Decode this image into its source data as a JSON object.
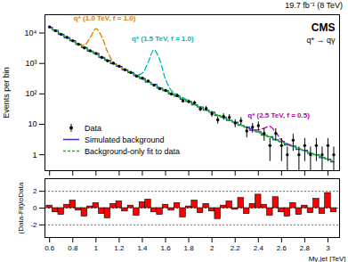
{
  "chart_data": [
    {
      "type": "line",
      "title": "CMS",
      "subtitle": "q* → qγ",
      "annotations": [
        "19.7 fb⁻¹ (8 TeV)"
      ],
      "y_label": "Events per bin",
      "log": "y",
      "legend": "bottom-left",
      "tick_labels": "y",
      "xlim": [
        0.56,
        3.1
      ],
      "xticks": [
        0.6,
        0.8,
        1,
        1.2,
        1.4,
        1.6,
        1.8,
        2,
        2.2,
        2.4,
        2.6,
        2.8,
        3
      ],
      "ylim": [
        0.3,
        40000
      ],
      "yticks": [
        1,
        10,
        {
          "value": 100,
          "label": "10²"
        },
        {
          "value": 1000,
          "label": "10³"
        },
        {
          "value": 10000,
          "label": "10⁴"
        }
      ],
      "x": [
        0.6,
        0.65,
        0.7,
        0.75,
        0.8,
        0.85,
        0.9,
        0.95,
        1.0,
        1.05,
        1.1,
        1.15,
        1.2,
        1.25,
        1.3,
        1.35,
        1.4,
        1.45,
        1.5,
        1.55,
        1.6,
        1.65,
        1.7,
        1.75,
        1.8,
        1.85,
        1.9,
        1.95,
        2.0,
        2.05,
        2.1,
        2.15,
        2.2,
        2.25,
        2.3,
        2.35,
        2.4,
        2.45,
        2.5,
        2.55,
        2.6,
        2.65,
        2.7,
        2.75,
        2.8,
        2.85,
        2.9,
        2.95,
        3.0,
        3.05
      ],
      "series": [
        {
          "name": "Data",
          "type": "scatter",
          "marker": "circle",
          "color": "#000000",
          "values": [
            15838,
            11945,
            9024,
            7134,
            5567,
            4280,
            3243,
            2610,
            2127,
            1572,
            1217,
            1016,
            812,
            620,
            507,
            382,
            328,
            266,
            193,
            148,
            130,
            99,
            88,
            59,
            56,
            51,
            32,
            33,
            22,
            14,
            18,
            17,
            11,
            13,
            6,
            8,
            9,
            5,
            2,
            5,
            2,
            1,
            3,
            1,
            2,
            1,
            2,
            1,
            2,
            1
          ],
          "errors": [
            126,
            109,
            95,
            84,
            75,
            65,
            57,
            51,
            46,
            40,
            35,
            32,
            28,
            25,
            23,
            20,
            18,
            16,
            14,
            12,
            11,
            10,
            9.4,
            7.7,
            7.5,
            7.1,
            5.7,
            5.7,
            4.7,
            3.7,
            4.2,
            4.1,
            3.3,
            3.6,
            2.4,
            2.8,
            3,
            2.2,
            1.4,
            2.2,
            1.4,
            0.8,
            1.7,
            0.8,
            1.4,
            0.8,
            1.4,
            0.8,
            1.4,
            0.8
          ]
        },
        {
          "name": "Simulated background",
          "type": "step",
          "line_style": "solid",
          "color": "#3333cc",
          "values": [
            15500,
            12300,
            9000,
            7000,
            5600,
            4250,
            3350,
            2550,
            2150,
            1580,
            1280,
            980,
            800,
            620,
            505,
            395,
            320,
            245,
            205,
            155,
            128,
            100,
            84,
            66,
            56,
            44,
            37,
            29,
            25,
            19.5,
            17,
            13.5,
            11.8,
            9.2,
            8.1,
            6.4,
            5.7,
            4.4,
            3.9,
            3.1,
            2.7,
            2.1,
            1.95,
            1.5,
            1.4,
            1.1,
            1.0,
            0.8,
            0.72,
            0.58
          ]
        },
        {
          "name": "Background-only fit to data",
          "type": "line",
          "line_style": "dashed",
          "color": "#00cc00",
          "values": [
            15800,
            12000,
            9100,
            7100,
            5500,
            4300,
            3300,
            2600,
            2100,
            1600,
            1260,
            1000,
            790,
            630,
            500,
            400,
            316,
            250,
            200,
            158,
            126,
            102,
            83,
            68,
            55,
            45,
            36,
            30,
            24,
            20,
            16.6,
            13.8,
            11.5,
            9.5,
            7.9,
            6.6,
            5.5,
            4.6,
            3.8,
            3.2,
            2.6,
            2.2,
            1.9,
            1.6,
            1.35,
            1.15,
            0.98,
            0.83,
            0.71,
            0.6
          ]
        }
      ],
      "signals": [
        {
          "name": "q* (1.0 TeV, f = 1.0)",
          "color": "#e07b00",
          "line_style": "dashed",
          "x": [
            0.85,
            0.9,
            0.95,
            1.0,
            1.05,
            1.1,
            1.15,
            1.2,
            1.25
          ],
          "values": [
            4300,
            4000,
            7000,
            14000,
            7500,
            2400,
            1100,
            790,
            630
          ]
        },
        {
          "name": "q* (1.5 TeV, f = 1.0)",
          "color": "#00b3b3",
          "line_style": "dashed",
          "x": [
            1.3,
            1.35,
            1.4,
            1.45,
            1.5,
            1.55,
            1.6,
            1.65,
            1.7,
            1.75,
            1.8
          ],
          "values": [
            500,
            430,
            480,
            1100,
            2800,
            1300,
            300,
            130,
            95,
            75,
            60
          ]
        },
        {
          "name": "q* (2.5 TeV, f = 0.5)",
          "color": "#b000b0",
          "line_style": "dashed",
          "x": [
            2.3,
            2.35,
            2.4,
            2.45,
            2.5,
            2.55,
            2.6,
            2.65,
            2.7
          ],
          "values": [
            7.9,
            6.8,
            6.5,
            7.5,
            8.5,
            5.5,
            3,
            2.3,
            1.9
          ]
        }
      ]
    },
    {
      "type": "bar",
      "y_label": "(Data-Fit)/σData",
      "x_label": "Mγ,jet [TeV]",
      "grid": true,
      "color": "#ff0000",
      "xlim": [
        0.56,
        3.1
      ],
      "xticks": [
        0.6,
        0.8,
        1,
        1.2,
        1.4,
        1.6,
        1.8,
        2,
        2.2,
        2.4,
        2.6,
        2.8,
        3
      ],
      "ylim": [
        -3.5,
        3.5
      ],
      "yticks": [
        -2,
        0,
        2
      ],
      "x": [
        0.6,
        0.65,
        0.7,
        0.75,
        0.8,
        0.85,
        0.9,
        0.95,
        1.0,
        1.05,
        1.1,
        1.15,
        1.2,
        1.25,
        1.3,
        1.35,
        1.4,
        1.45,
        1.5,
        1.55,
        1.6,
        1.65,
        1.7,
        1.75,
        1.8,
        1.85,
        1.9,
        1.95,
        2.0,
        2.05,
        2.1,
        2.15,
        2.2,
        2.25,
        2.3,
        2.35,
        2.4,
        2.45,
        2.5,
        2.55,
        2.6,
        2.65,
        2.7,
        2.75,
        2.8,
        2.85,
        2.9,
        2.95,
        3.0,
        3.05
      ],
      "values": [
        0.3,
        -0.5,
        -0.8,
        0.4,
        0.9,
        -0.3,
        -1.0,
        0.2,
        0.6,
        -0.7,
        -1.2,
        0.5,
        0.8,
        -0.4,
        0.3,
        -0.9,
        0.7,
        1.0,
        -0.5,
        -0.8,
        0.4,
        -0.3,
        0.6,
        -1.1,
        0.2,
        0.9,
        -0.6,
        0.5,
        -0.4,
        -1.3,
        0.3,
        0.8,
        -0.2,
        1.2,
        -0.7,
        0.5,
        1.6,
        0.4,
        -0.9,
        1.3,
        -0.5,
        -1.0,
        0.6,
        -0.8,
        0.3,
        -0.6,
        1.1,
        -0.7,
        1.8,
        -0.5
      ]
    }
  ]
}
